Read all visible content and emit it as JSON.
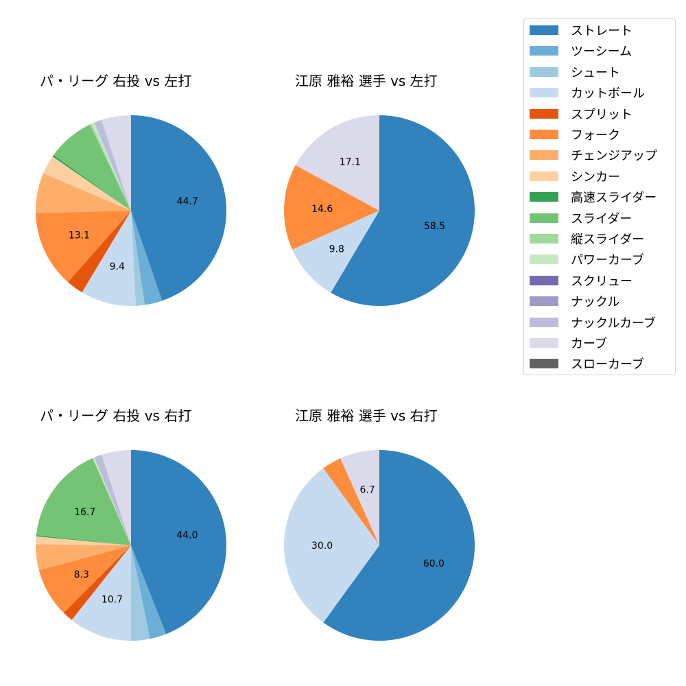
{
  "chart_data": [
    {
      "type": "pie",
      "title": "パ・リーグ 右投 vs 左打",
      "categories": [
        "ストレート",
        "ツーシーム",
        "シュート",
        "カットボール",
        "スプリット",
        "フォーク",
        "チェンジアップ",
        "シンカー",
        "高速スライダー",
        "スライダー",
        "縦スライダー",
        "パワーカーブ",
        "ナックルカーブ",
        "カーブ"
      ],
      "values": [
        44.7,
        3.0,
        1.5,
        9.4,
        2.9,
        13.1,
        6.8,
        3.2,
        0.3,
        8.0,
        0.3,
        0.5,
        1.3,
        5.0
      ],
      "labels_shown": [
        "44.7",
        "9.4",
        "13.1"
      ]
    },
    {
      "type": "pie",
      "title": "江原 雅裕 選手 vs 左打",
      "categories": [
        "ストレート",
        "カットボール",
        "フォーク",
        "カーブ"
      ],
      "values": [
        58.5,
        9.8,
        14.6,
        17.1
      ],
      "labels_shown": [
        "58.5",
        "9.8",
        "14.6",
        "17.1"
      ]
    },
    {
      "type": "pie",
      "title": "パ・リーグ 右投 vs 右打",
      "categories": [
        "ストレート",
        "ツーシーム",
        "シュート",
        "カットボール",
        "スプリット",
        "フォーク",
        "チェンジアップ",
        "シンカー",
        "高速スライダー",
        "スライダー",
        "パワーカーブ",
        "ナックルカーブ",
        "カーブ"
      ],
      "values": [
        44.0,
        2.8,
        3.2,
        10.7,
        1.8,
        8.3,
        4.4,
        1.3,
        0.2,
        16.7,
        0.3,
        1.3,
        5.0
      ],
      "labels_shown": [
        "44.0",
        "10.7",
        "8.3",
        "16.7"
      ]
    },
    {
      "type": "pie",
      "title": "江原 雅裕 選手 vs 右打",
      "categories": [
        "ストレート",
        "カットボール",
        "フォーク",
        "カーブ"
      ],
      "values": [
        60.0,
        30.0,
        3.3,
        6.7
      ],
      "labels_shown": [
        "60.0",
        "30.0",
        "6.7"
      ]
    }
  ],
  "legend": {
    "items": [
      {
        "label": "ストレート",
        "color": "#3182bd"
      },
      {
        "label": "ツーシーム",
        "color": "#6baed6"
      },
      {
        "label": "シュート",
        "color": "#9ecae1"
      },
      {
        "label": "カットボール",
        "color": "#c6dbef"
      },
      {
        "label": "スプリット",
        "color": "#e6550d"
      },
      {
        "label": "フォーク",
        "color": "#fd8d3c"
      },
      {
        "label": "チェンジアップ",
        "color": "#fdae6b"
      },
      {
        "label": "シンカー",
        "color": "#fdd0a2"
      },
      {
        "label": "高速スライダー",
        "color": "#31a354"
      },
      {
        "label": "スライダー",
        "color": "#74c476"
      },
      {
        "label": "縦スライダー",
        "color": "#a1d99b"
      },
      {
        "label": "パワーカーブ",
        "color": "#c7e9c0"
      },
      {
        "label": "スクリュー",
        "color": "#756bb1"
      },
      {
        "label": "ナックル",
        "color": "#9e9ac8"
      },
      {
        "label": "ナックルカーブ",
        "color": "#bcbddc"
      },
      {
        "label": "カーブ",
        "color": "#dadaeb"
      },
      {
        "label": "スローカーブ",
        "color": "#636363"
      }
    ]
  }
}
